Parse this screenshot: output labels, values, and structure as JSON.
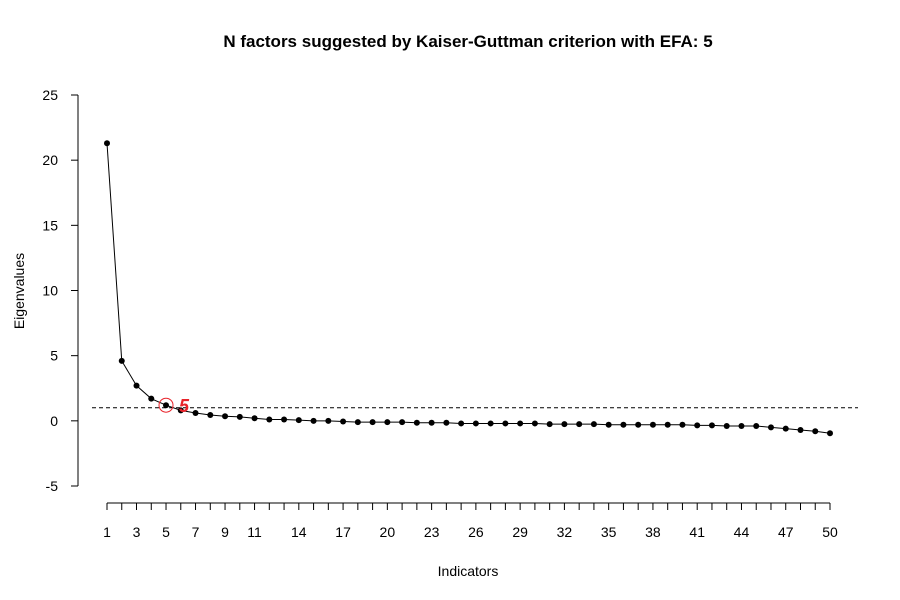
{
  "chart_data": {
    "type": "line",
    "title": "N factors suggested by Kaiser-Guttman criterion with EFA: 5",
    "xlabel": "Indicators",
    "ylabel": "Eigenvalues",
    "xlim": [
      1,
      50
    ],
    "ylim": [
      -5,
      25
    ],
    "yticks": [
      -5,
      0,
      5,
      10,
      15,
      20,
      25
    ],
    "xtick_labels": [
      1,
      3,
      5,
      7,
      9,
      11,
      14,
      17,
      20,
      23,
      26,
      29,
      32,
      35,
      38,
      41,
      44,
      47,
      50
    ],
    "x": [
      1,
      2,
      3,
      4,
      5,
      6,
      7,
      8,
      9,
      10,
      11,
      12,
      13,
      14,
      15,
      16,
      17,
      18,
      19,
      20,
      21,
      22,
      23,
      24,
      25,
      26,
      27,
      28,
      29,
      30,
      31,
      32,
      33,
      34,
      35,
      36,
      37,
      38,
      39,
      40,
      41,
      42,
      43,
      44,
      45,
      46,
      47,
      48,
      49,
      50
    ],
    "values": [
      21.3,
      4.6,
      2.7,
      1.7,
      1.2,
      0.8,
      0.6,
      0.45,
      0.35,
      0.3,
      0.2,
      0.1,
      0.1,
      0.05,
      0.0,
      0.0,
      -0.05,
      -0.1,
      -0.1,
      -0.1,
      -0.1,
      -0.15,
      -0.15,
      -0.15,
      -0.2,
      -0.2,
      -0.2,
      -0.2,
      -0.2,
      -0.2,
      -0.25,
      -0.25,
      -0.25,
      -0.25,
      -0.3,
      -0.3,
      -0.3,
      -0.3,
      -0.3,
      -0.3,
      -0.35,
      -0.35,
      -0.4,
      -0.4,
      -0.4,
      -0.5,
      -0.6,
      -0.7,
      -0.8,
      -0.95
    ],
    "threshold": 1,
    "suggested_factors": 5,
    "annotation_label": "5",
    "colors": {
      "line": "#000000",
      "point": "#000000",
      "annotation": "#e8232a",
      "threshold": "#000000"
    },
    "grid": false,
    "legend": "none"
  }
}
